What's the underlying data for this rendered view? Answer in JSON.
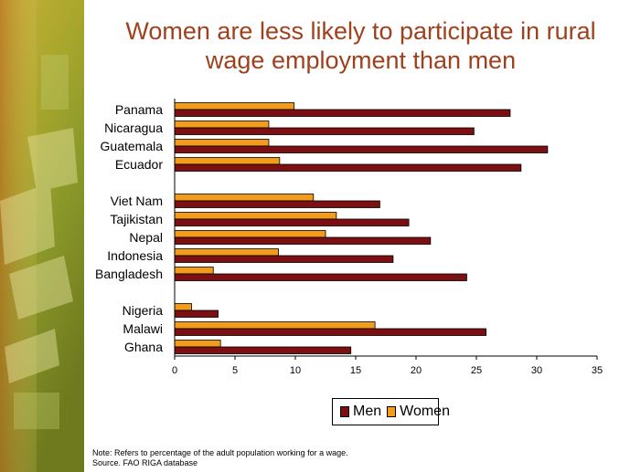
{
  "title": {
    "line1": "Women are less likely to participate in rural",
    "line2": "wage employment than men"
  },
  "colors": {
    "men": "#7b0f12",
    "women": "#f39b1a",
    "title": "#a0401d"
  },
  "chart_data": {
    "type": "bar",
    "orientation": "horizontal",
    "title": "Women are less likely to participate in rural wage employment than men",
    "xlabel": "",
    "ylabel": "",
    "xlim": [
      0,
      35
    ],
    "xticks": [
      0,
      5,
      10,
      15,
      20,
      25,
      30,
      35
    ],
    "grid": false,
    "legend_placement": "bottom",
    "groups": [
      [
        "Panama",
        "Nicaragua",
        "Guatemala",
        "Ecuador"
      ],
      [
        "Viet Nam",
        "Tajikistan",
        "Nepal",
        "Indonesia",
        "Bangladesh"
      ],
      [
        "Nigeria",
        "Malawi",
        "Ghana"
      ]
    ],
    "categories": [
      "Panama",
      "Nicaragua",
      "Guatemala",
      "Ecuador",
      "Viet Nam",
      "Tajikistan",
      "Nepal",
      "Indonesia",
      "Bangladesh",
      "Nigeria",
      "Malawi",
      "Ghana"
    ],
    "series": [
      {
        "name": "Men",
        "values": [
          27.8,
          24.8,
          30.9,
          28.7,
          17.0,
          19.4,
          21.2,
          18.1,
          24.2,
          3.6,
          25.8,
          14.6
        ]
      },
      {
        "name": "Women",
        "values": [
          9.9,
          7.8,
          7.8,
          8.7,
          11.5,
          13.4,
          12.5,
          8.6,
          3.2,
          1.4,
          16.6,
          3.8
        ]
      }
    ]
  },
  "legend": {
    "men": "Men",
    "women": "Women"
  },
  "notes": {
    "note": "Note: Refers to percentage of the adult population working for a wage.",
    "source": "Source. FAO RIGA database"
  }
}
